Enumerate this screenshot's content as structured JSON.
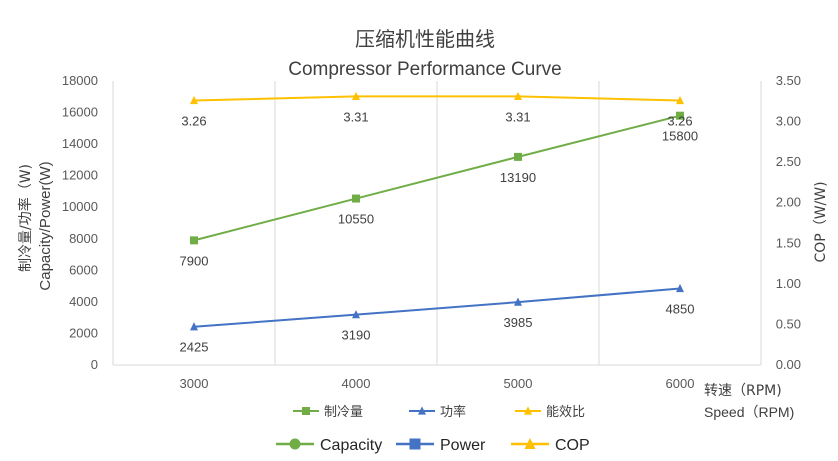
{
  "chart_data": {
    "type": "line",
    "title": "压缩机性能曲线",
    "subtitle": "Compressor Performance Curve",
    "xlabel": "转速（RPM)",
    "xlabel_en": "Speed（RPM)",
    "ylabel": "制冷量/功率（W)",
    "ylabel_en": "Capacity/Power(W)",
    "y2label": "COP（W/W)",
    "categories": [
      "3000",
      "4000",
      "5000",
      "6000"
    ],
    "ylim": [
      0,
      18000
    ],
    "yticks": [
      "0",
      "2000",
      "4000",
      "6000",
      "8000",
      "10000",
      "12000",
      "14000",
      "16000",
      "18000"
    ],
    "y2lim": [
      0,
      3.5
    ],
    "y2ticks": [
      "0.00",
      "0.50",
      "1.00",
      "1.50",
      "2.00",
      "2.50",
      "3.00",
      "3.50"
    ],
    "grid": "vertical",
    "series": [
      {
        "name": "制冷量",
        "axis": "left",
        "marker": "square",
        "color": "#70ad47",
        "values": [
          7900,
          10550,
          13190,
          15800
        ],
        "labels": [
          "7900",
          "10550",
          "13190",
          "15800"
        ]
      },
      {
        "name": "功率",
        "axis": "left",
        "marker": "triangle",
        "color": "#4472c4",
        "values": [
          2425,
          3190,
          3985,
          4850
        ],
        "labels": [
          "2425",
          "3190",
          "3985",
          "4850"
        ]
      },
      {
        "name": "能效比",
        "axis": "right",
        "marker": "triangle",
        "color": "#ffc000",
        "values": [
          3.26,
          3.31,
          3.31,
          3.26
        ],
        "labels": [
          "3.26",
          "3.31",
          "3.31",
          "3.26"
        ]
      }
    ],
    "legend_primary": [
      "制冷量",
      "功率",
      "能效比"
    ],
    "legend_secondary": [
      {
        "name": "Capacity",
        "marker": "circle",
        "color": "#70ad47"
      },
      {
        "name": "Power",
        "marker": "square",
        "color": "#4472c4"
      },
      {
        "name": "COP",
        "marker": "triangle",
        "color": "#ffc000"
      }
    ],
    "legend_position": "bottom"
  }
}
